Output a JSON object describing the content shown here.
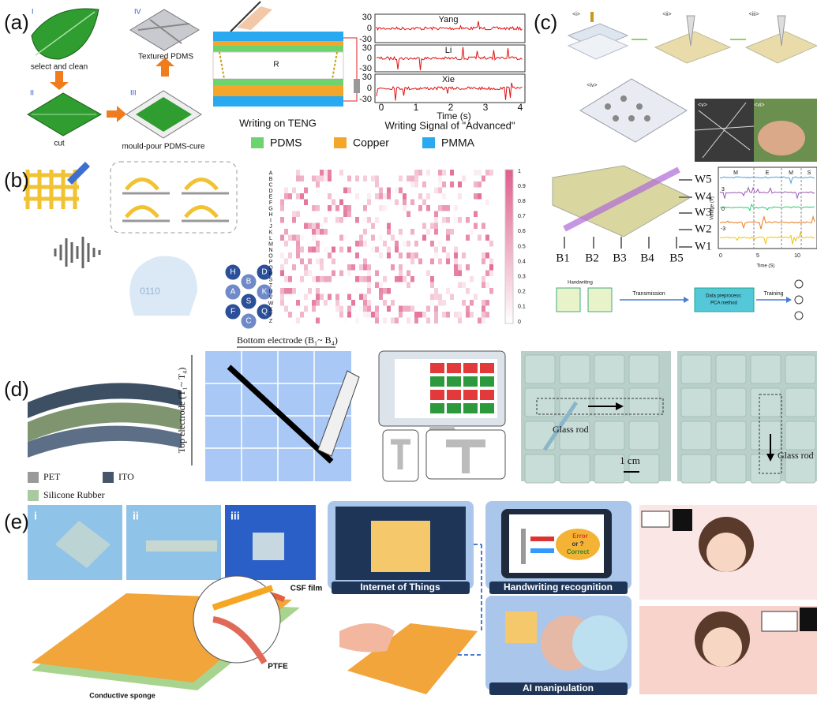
{
  "panel_a": {
    "label": "(a)",
    "steps": [
      {
        "numeral": "I",
        "caption": "select and clean"
      },
      {
        "numeral": "II",
        "caption": "cut"
      },
      {
        "numeral": "III",
        "caption": "mould-pour PDMS-cure"
      },
      {
        "numeral": "IV",
        "caption": "Textured PDMS"
      }
    ],
    "device": {
      "resistor": "R",
      "caption": "Writing on TENG"
    },
    "plot": {
      "traces": [
        "Yang",
        "Li",
        "Xie"
      ],
      "yticks": [
        "30",
        "0",
        "-30"
      ],
      "xticks": [
        "0",
        "1",
        "2",
        "3",
        "4"
      ],
      "xlabel": "Time (s)",
      "caption": "Writing Signal of \"Advanced\""
    },
    "legend": [
      "PDMS",
      "Copper",
      "PMMA"
    ]
  },
  "panel_b": {
    "label": "(b)",
    "decoder_text": "0110",
    "hex_letters": [
      "H",
      "B",
      "D",
      "A",
      "S",
      "K",
      "F",
      "C",
      "Q"
    ],
    "rows": [
      "A",
      "B",
      "C",
      "D",
      "E",
      "F",
      "G",
      "H",
      "I",
      "J",
      "K",
      "L",
      "M",
      "N",
      "O",
      "P",
      "Q",
      "R",
      "S",
      "T",
      "U",
      "V",
      "W",
      "X",
      "Y",
      "Z"
    ],
    "colorbar_ticks": [
      "1",
      "0.9",
      "0.8",
      "0.7",
      "0.6",
      "0.5",
      "0.4",
      "0.3",
      "0.2",
      "0.1",
      "0"
    ]
  },
  "panel_c": {
    "label": "(c)",
    "steps": [
      "<i>",
      "<ii>",
      "<iii>",
      "<iv>",
      "<v>",
      "<vi>"
    ],
    "word_lines": [
      "W5",
      "W4",
      "W3",
      "W2",
      "W1"
    ],
    "bit_lines": [
      "B1",
      "B2",
      "B3",
      "B4",
      "B5"
    ],
    "plot": {
      "segments": [
        "M",
        "E",
        "M",
        "S"
      ],
      "ylabel": "Voltage (V)",
      "yticks": [
        "3",
        "0",
        "-3"
      ],
      "xticks": [
        "0",
        "5",
        "10"
      ],
      "xlabel": "Time (S)"
    },
    "flow": {
      "input": "Handwriting",
      "transmission": "Transmission",
      "box": [
        "Data preprocess:",
        "PCA method"
      ],
      "training": "Training"
    }
  },
  "panel_d": {
    "label": "(d)",
    "bottom_electrode": "Bottom electrode (B₁~ B₄)",
    "top_electrode": "Top electrode (T₁~ T₄)",
    "legend": [
      "PET",
      "ITO",
      "Silicone Rubber"
    ],
    "photos": [
      "Glass rod",
      "Glass rod"
    ],
    "scale": "1 cm"
  },
  "panel_e": {
    "label": "(e)",
    "photos": [
      "i",
      "ii",
      "iii"
    ],
    "layers": [
      "CSF film",
      "PTFE",
      "Conductive sponge"
    ],
    "apps": [
      "Internet of Things",
      "Handwriting recognition",
      "AI manipulation"
    ],
    "screen": [
      "Error",
      "or ?",
      "Correct"
    ]
  }
}
